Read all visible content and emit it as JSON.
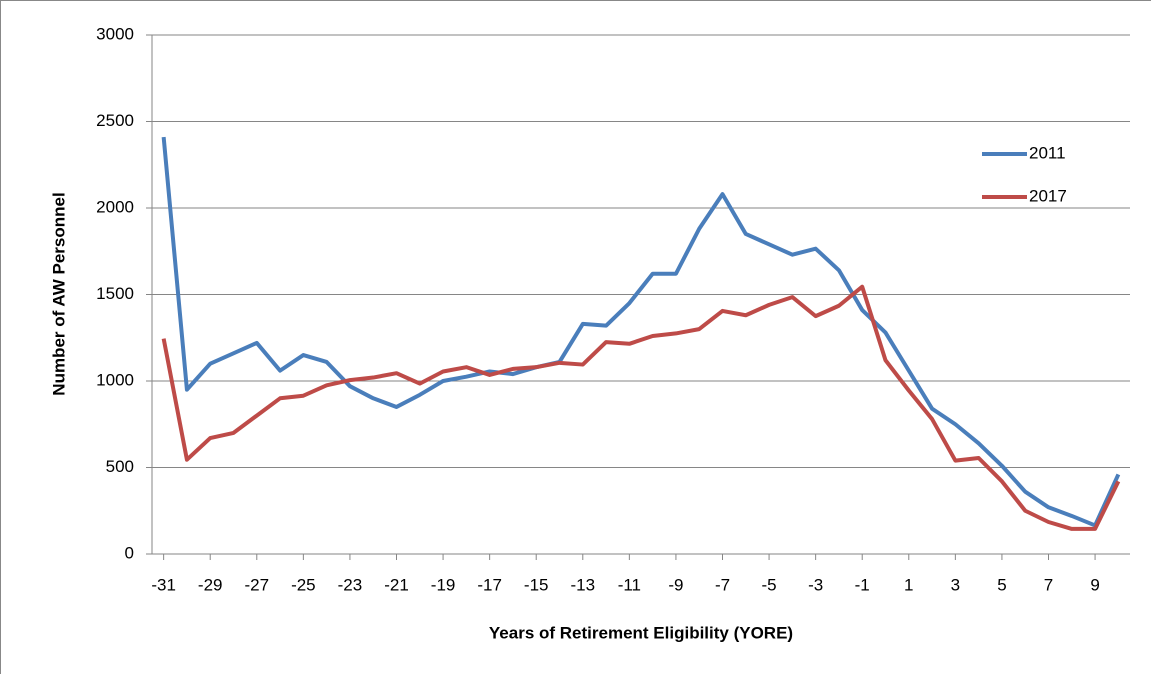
{
  "chart_data": {
    "type": "line",
    "x_label": "Years of Retirement Eligibility (YORE)",
    "y_label": "Number of AW Personnel",
    "x": [
      -31,
      -30,
      -29,
      -28,
      -27,
      -26,
      -25,
      -24,
      -23,
      -22,
      -21,
      -20,
      -19,
      -18,
      -17,
      -16,
      -15,
      -14,
      -13,
      -12,
      -11,
      -10,
      -9,
      -8,
      -7,
      -6,
      -5,
      -4,
      -3,
      -2,
      -1,
      0,
      1,
      2,
      3,
      4,
      5,
      6,
      7,
      8,
      9,
      10
    ],
    "series": [
      {
        "name": "2011",
        "color": "#4a7ebb",
        "values": [
          2410,
          950,
          1100,
          1160,
          1220,
          1060,
          1150,
          1110,
          970,
          900,
          850,
          920,
          1000,
          1025,
          1055,
          1040,
          1080,
          1110,
          1330,
          1320,
          1450,
          1620,
          1620,
          1880,
          2080,
          1850,
          1790,
          1730,
          1765,
          1640,
          1410,
          1280,
          1060,
          840,
          750,
          640,
          510,
          360,
          270,
          220,
          165,
          460
        ]
      },
      {
        "name": "2017",
        "color": "#be4b48",
        "values": [
          1245,
          545,
          670,
          700,
          800,
          900,
          915,
          975,
          1005,
          1020,
          1045,
          985,
          1055,
          1080,
          1035,
          1070,
          1080,
          1105,
          1095,
          1225,
          1215,
          1260,
          1275,
          1300,
          1405,
          1380,
          1440,
          1485,
          1375,
          1435,
          1545,
          1120,
          945,
          780,
          540,
          555,
          420,
          250,
          185,
          145,
          145,
          420
        ]
      }
    ],
    "xlim": [
      -31.5,
      10.5
    ],
    "xticks": [
      -31,
      -29,
      -27,
      -25,
      -23,
      -21,
      -19,
      -17,
      -15,
      -13,
      -11,
      -9,
      -7,
      -5,
      -3,
      -1,
      1,
      3,
      5,
      7,
      9
    ],
    "ylim": [
      0,
      3000
    ],
    "yticks": [
      0,
      500,
      1000,
      1500,
      2000,
      2500,
      3000
    ],
    "grid": true,
    "legend": "right"
  }
}
